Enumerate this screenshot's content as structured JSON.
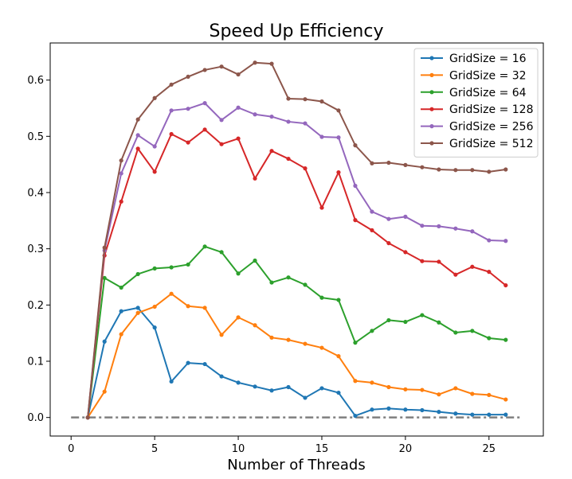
{
  "chart_data": {
    "type": "line",
    "title": "Speed Up Efficiency",
    "xlabel": "Number of Threads",
    "ylabel": "",
    "xlim": [
      -1.25,
      28.25
    ],
    "ylim": [
      -0.033,
      0.666
    ],
    "x_ticks": [
      0,
      5,
      10,
      15,
      20,
      25
    ],
    "y_ticks": [
      0.0,
      0.1,
      0.2,
      0.3,
      0.4,
      0.5,
      0.6
    ],
    "grid": false,
    "legend_position": "top-right",
    "x": [
      1,
      2,
      3,
      4,
      5,
      6,
      7,
      8,
      9,
      10,
      11,
      12,
      13,
      14,
      15,
      16,
      17,
      18,
      19,
      20,
      21,
      22,
      23,
      24,
      25,
      26
    ],
    "series": [
      {
        "name": "GridSize = 16",
        "color": "#1f77b4",
        "values": [
          0.0,
          0.135,
          0.189,
          0.195,
          0.16,
          0.064,
          0.097,
          0.095,
          0.073,
          0.062,
          0.055,
          0.048,
          0.054,
          0.035,
          0.052,
          0.044,
          0.003,
          0.014,
          0.016,
          0.014,
          0.013,
          0.01,
          0.007,
          0.005,
          0.005,
          0.005
        ]
      },
      {
        "name": "GridSize = 32",
        "color": "#ff7f0e",
        "values": [
          0.0,
          0.046,
          0.148,
          0.186,
          0.197,
          0.22,
          0.198,
          0.195,
          0.147,
          0.178,
          0.164,
          0.142,
          0.138,
          0.131,
          0.124,
          0.109,
          0.065,
          0.062,
          0.054,
          0.05,
          0.049,
          0.041,
          0.052,
          0.042,
          0.04,
          0.032
        ]
      },
      {
        "name": "GridSize = 64",
        "color": "#2ca02c",
        "values": [
          0.0,
          0.248,
          0.231,
          0.255,
          0.265,
          0.267,
          0.272,
          0.304,
          0.294,
          0.256,
          0.279,
          0.24,
          0.249,
          0.236,
          0.213,
          0.209,
          0.133,
          0.154,
          0.173,
          0.17,
          0.182,
          0.169,
          0.151,
          0.154,
          0.141,
          0.138
        ]
      },
      {
        "name": "GridSize = 128",
        "color": "#d62728",
        "values": [
          0.0,
          0.288,
          0.384,
          0.478,
          0.437,
          0.504,
          0.489,
          0.512,
          0.486,
          0.496,
          0.425,
          0.474,
          0.46,
          0.443,
          0.373,
          0.436,
          0.351,
          0.333,
          0.31,
          0.294,
          0.278,
          0.277,
          0.254,
          0.268,
          0.259,
          0.235
        ]
      },
      {
        "name": "GridSize = 256",
        "color": "#9467bd",
        "values": [
          0.0,
          0.297,
          0.434,
          0.502,
          0.482,
          0.546,
          0.549,
          0.559,
          0.529,
          0.551,
          0.539,
          0.535,
          0.526,
          0.523,
          0.499,
          0.498,
          0.412,
          0.366,
          0.353,
          0.357,
          0.341,
          0.34,
          0.336,
          0.331,
          0.315,
          0.314
        ]
      },
      {
        "name": "GridSize = 512",
        "color": "#8c564b",
        "values": [
          0.0,
          0.302,
          0.457,
          0.53,
          0.568,
          0.592,
          0.606,
          0.618,
          0.624,
          0.61,
          0.631,
          0.629,
          0.567,
          0.566,
          0.562,
          0.546,
          0.484,
          0.452,
          0.453,
          0.449,
          0.445,
          0.441,
          0.44,
          0.44,
          0.437,
          0.441
        ]
      }
    ],
    "reference_line": {
      "y": 0.0,
      "x_from": 0,
      "x_to": 27,
      "color": "#7f7f7f",
      "style": "dash-dot"
    }
  }
}
